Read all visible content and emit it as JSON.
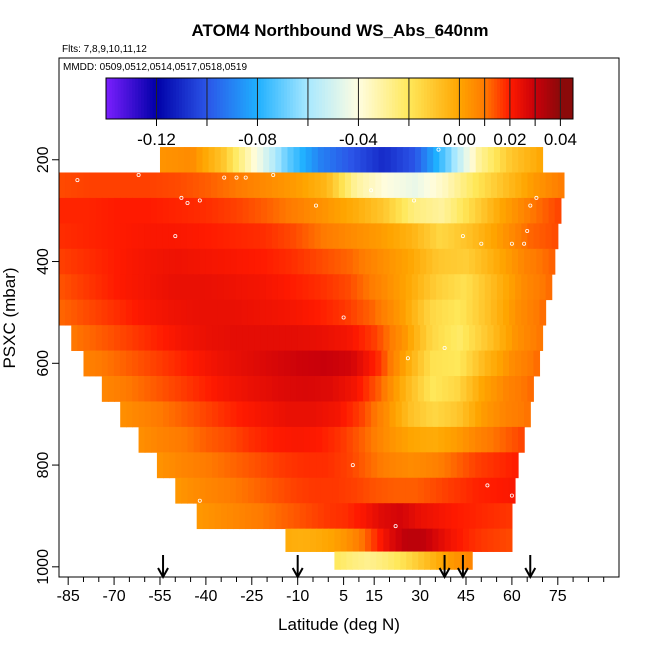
{
  "chart_data": {
    "type": "heatmap",
    "title": "ATOM4 Northbound WS_Abs_640nm",
    "flights_label": "Flts: 7,8,9,10,11,12",
    "dates_label": "MMDD: 0509,0512,0514,0517,0518,0519",
    "xlabel": "Latitude (deg N)",
    "ylabel": "PSXC (mbar)",
    "xlim": [
      -88,
      95
    ],
    "ylim": [
      1020,
      0
    ],
    "x_ticks": [
      -85,
      -70,
      -55,
      -40,
      -25,
      -10,
      5,
      15,
      30,
      45,
      60,
      75
    ],
    "x_minor_ticks": [
      -80,
      -75,
      -65,
      -60,
      -50,
      -45,
      -35,
      -30,
      -20,
      -15,
      -5,
      0,
      10,
      20,
      25,
      35,
      40,
      50,
      55,
      65,
      70,
      80,
      85,
      90
    ],
    "y_ticks": [
      200,
      400,
      600,
      800,
      1000
    ],
    "colorbar": {
      "range": [
        -0.14,
        0.045
      ],
      "tick_values": [
        -0.12,
        -0.08,
        -0.04,
        0.0,
        0.02,
        0.04
      ],
      "tick_labels": [
        "-0.12",
        "-0.08",
        "-0.04",
        "0.00",
        "0.02",
        "0.04"
      ],
      "boundaries": [
        -0.14,
        -0.12,
        -0.1,
        -0.08,
        -0.06,
        -0.04,
        -0.02,
        0.0,
        0.01,
        0.02,
        0.03,
        0.04,
        0.045
      ],
      "colors": [
        "#7b1fff",
        "#0000a8",
        "#2b55e8",
        "#1fb0ff",
        "#a8e8ff",
        "#fffde0",
        "#ffe85a",
        "#ffa500",
        "#ff7a00",
        "#ff1a00",
        "#c8000a",
        "#8b0a0a"
      ]
    },
    "series": [
      {
        "name": "WS_Abs_640nm",
        "palette_stops": [
          "#1e22e0",
          "#1fb0ff",
          "#a8e8ff",
          "#fffde0",
          "#ffe85a",
          "#ffa500",
          "#ff7a00",
          "#ff1a00"
        ]
      }
    ],
    "layers": [
      {
        "p": 200,
        "lat": [
          -55,
          70
        ],
        "v": [
          0.004,
          0.006,
          -0.01,
          -0.04,
          -0.07,
          -0.09,
          -0.1,
          -0.11,
          -0.1,
          -0.07,
          -0.03,
          -0.01,
          0.0
        ]
      },
      {
        "p": 250,
        "lat": [
          -88,
          77
        ],
        "v": [
          0.015,
          0.016,
          0.016,
          0.016,
          0.015,
          0.013,
          0.01,
          0.006,
          0.002,
          -0.005,
          -0.03,
          -0.04,
          -0.045,
          -0.035,
          -0.02,
          -0.008,
          0.003,
          0.01
        ]
      },
      {
        "p": 300,
        "lat": [
          -88,
          76
        ],
        "v": [
          0.019,
          0.019,
          0.02,
          0.02,
          0.019,
          0.018,
          0.016,
          0.013,
          0.009,
          0.004,
          -0.002,
          -0.01,
          -0.025,
          -0.03,
          -0.015,
          0.0,
          0.01,
          0.016
        ]
      },
      {
        "p": 350,
        "lat": [
          -88,
          75
        ],
        "v": [
          0.018,
          0.019,
          0.02,
          0.021,
          0.021,
          0.02,
          0.019,
          0.018,
          0.015,
          0.01,
          0.006,
          0.002,
          -0.004,
          -0.015,
          -0.008,
          0.002,
          0.012,
          0.015
        ]
      },
      {
        "p": 400,
        "lat": [
          -88,
          74
        ],
        "v": [
          0.016,
          0.018,
          0.02,
          0.022,
          0.023,
          0.022,
          0.021,
          0.02,
          0.018,
          0.015,
          0.012,
          0.006,
          0.0,
          -0.01,
          -0.012,
          -0.002,
          0.008,
          0.013
        ]
      },
      {
        "p": 450,
        "lat": [
          -88,
          73
        ],
        "v": [
          0.014,
          0.017,
          0.02,
          0.022,
          0.024,
          0.024,
          0.023,
          0.022,
          0.02,
          0.018,
          0.015,
          0.008,
          0.0,
          -0.012,
          -0.018,
          -0.006,
          0.006,
          0.012
        ]
      },
      {
        "p": 500,
        "lat": [
          -88,
          71
        ],
        "v": [
          0.012,
          0.015,
          0.018,
          0.021,
          0.023,
          0.024,
          0.024,
          0.023,
          0.022,
          0.02,
          0.017,
          0.012,
          0.002,
          -0.015,
          -0.02,
          -0.008,
          0.005,
          0.012
        ]
      },
      {
        "p": 550,
        "lat": [
          -84,
          70
        ],
        "v": [
          0.01,
          0.013,
          0.016,
          0.019,
          0.022,
          0.024,
          0.025,
          0.025,
          0.025,
          0.024,
          0.022,
          0.016,
          0.004,
          -0.015,
          -0.022,
          -0.01,
          0.004,
          0.011
        ]
      },
      {
        "p": 600,
        "lat": [
          -80,
          69
        ],
        "v": [
          0.008,
          0.011,
          0.014,
          0.017,
          0.02,
          0.023,
          0.025,
          0.027,
          0.029,
          0.03,
          0.028,
          0.018,
          0.0,
          -0.018,
          -0.02,
          -0.005,
          0.006,
          0.012
        ]
      },
      {
        "p": 650,
        "lat": [
          -74,
          67
        ],
        "v": [
          0.007,
          0.01,
          0.013,
          0.016,
          0.019,
          0.022,
          0.024,
          0.026,
          0.027,
          0.026,
          0.022,
          0.012,
          -0.005,
          -0.02,
          -0.015,
          0.0,
          0.008,
          0.012
        ]
      },
      {
        "p": 700,
        "lat": [
          -68,
          66
        ],
        "v": [
          0.005,
          0.008,
          0.011,
          0.014,
          0.017,
          0.02,
          0.022,
          0.024,
          0.024,
          0.022,
          0.016,
          0.006,
          -0.008,
          -0.015,
          -0.01,
          0.002,
          0.008,
          0.011
        ]
      },
      {
        "p": 750,
        "lat": [
          -62,
          64
        ],
        "v": [
          0.005,
          0.008,
          0.01,
          0.013,
          0.015,
          0.018,
          0.02,
          0.021,
          0.02,
          0.017,
          0.012,
          0.005,
          0.0,
          -0.002,
          0.002,
          0.008,
          0.012,
          0.016
        ]
      },
      {
        "p": 800,
        "lat": [
          -56,
          62
        ],
        "v": [
          0.004,
          0.007,
          0.009,
          0.011,
          0.013,
          0.015,
          0.017,
          0.018,
          0.018,
          0.016,
          0.012,
          0.008,
          0.006,
          0.008,
          0.012,
          0.016,
          0.018,
          0.02
        ]
      },
      {
        "p": 850,
        "lat": [
          -50,
          61
        ],
        "v": [
          0.003,
          0.006,
          0.008,
          0.01,
          0.012,
          0.014,
          0.016,
          0.017,
          0.017,
          0.016,
          0.014,
          0.013,
          0.013,
          0.015,
          0.017,
          0.019,
          0.02,
          0.021
        ]
      },
      {
        "p": 900,
        "lat": [
          -43,
          60
        ],
        "v": [
          0.003,
          0.005,
          0.007,
          0.009,
          0.011,
          0.013,
          0.015,
          0.017,
          0.018,
          0.021,
          0.026,
          0.028,
          0.024,
          0.022,
          0.02,
          0.019,
          0.018,
          0.017
        ]
      },
      {
        "p": 950,
        "lat": [
          -14,
          60
        ],
        "v": [
          -0.002,
          -0.003,
          -0.002,
          0.0,
          0.004,
          0.01,
          0.018,
          0.026,
          0.032,
          0.032,
          0.027,
          0.022,
          0.019,
          0.017,
          0.016,
          0.015
        ]
      },
      {
        "p": 990,
        "lat": [
          2,
          47
        ],
        "v": [
          -0.02,
          -0.025,
          -0.028,
          -0.024,
          -0.018,
          -0.01,
          -0.002,
          0.004,
          0.008
        ]
      }
    ],
    "sample_points": [
      [
        -87,
        220
      ],
      [
        -82,
        240
      ],
      [
        -62,
        230
      ],
      [
        -48,
        275
      ],
      [
        -46,
        285
      ],
      [
        -42,
        280
      ],
      [
        -34,
        235
      ],
      [
        -30,
        235
      ],
      [
        -27,
        235
      ],
      [
        -18,
        230
      ],
      [
        -4,
        290
      ],
      [
        14,
        260
      ],
      [
        28,
        280
      ],
      [
        36,
        180
      ],
      [
        50,
        365
      ],
      [
        60,
        365
      ],
      [
        64,
        365
      ],
      [
        65,
        340
      ],
      [
        68,
        275
      ],
      [
        66,
        290
      ],
      [
        -50,
        350
      ],
      [
        44,
        350
      ],
      [
        5,
        510
      ],
      [
        26,
        590
      ],
      [
        38,
        570
      ],
      [
        8,
        800
      ],
      [
        52,
        840
      ],
      [
        60,
        860
      ],
      [
        -42,
        870
      ],
      [
        22,
        920
      ]
    ],
    "arrows": [
      -54,
      -10,
      38,
      44,
      66
    ]
  }
}
